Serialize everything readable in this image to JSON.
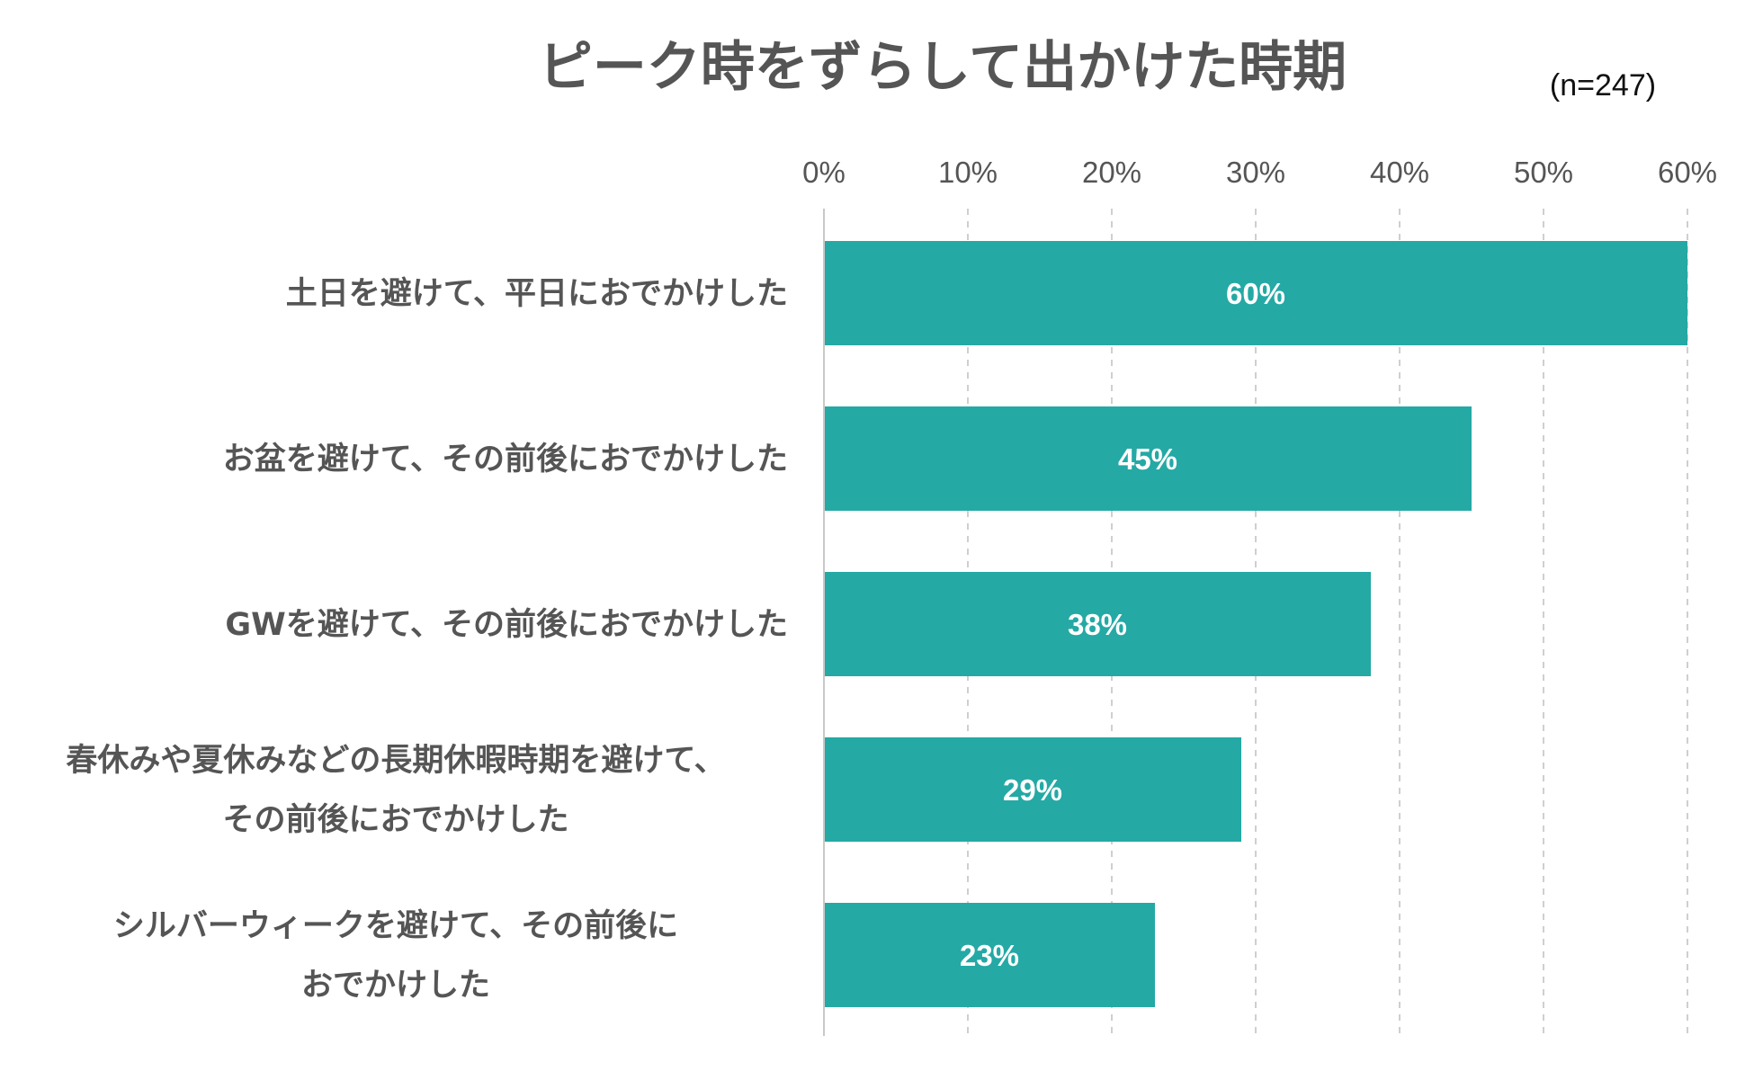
{
  "chart_data": {
    "type": "bar",
    "orientation": "horizontal",
    "title": "ピーク時をずらして出かけた時期",
    "sample_note": "(n=247)",
    "categories": [
      [
        "土日を避けて、平日におでかけした"
      ],
      [
        "お盆を避けて、その前後におでかけした"
      ],
      [
        "GWを避けて、その前後におでかけした"
      ],
      [
        "春休みや夏休みなどの長期休暇時期を避けて、",
        "その前後におでかけした"
      ],
      [
        "シルバーウィークを避けて、その前後に",
        "おでかけした"
      ]
    ],
    "values": [
      60,
      45,
      38,
      29,
      23
    ],
    "value_labels": [
      "60%",
      "45%",
      "38%",
      "29%",
      "23%"
    ],
    "xlim": [
      0,
      60
    ],
    "ticks": [
      0,
      10,
      20,
      30,
      40,
      50,
      60
    ],
    "tick_labels": [
      "0%",
      "10%",
      "20%",
      "30%",
      "40%",
      "50%",
      "60%"
    ],
    "axis_position": "top",
    "grid": true,
    "grid_style": "dashed",
    "legend": "none",
    "colors": {
      "bar": "#24A9A5",
      "text": "#555555",
      "grid": "#cfcfcf"
    }
  }
}
